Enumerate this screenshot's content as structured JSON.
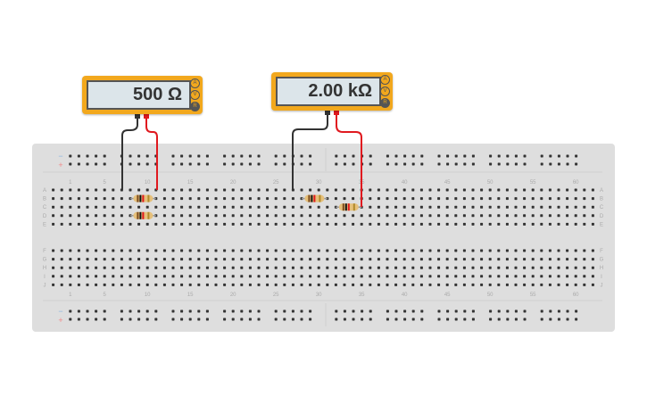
{
  "meters": [
    {
      "reading": "500 Ω",
      "modes": [
        "A",
        "V",
        "R"
      ],
      "selected_mode": "R"
    },
    {
      "reading": "2.00 kΩ",
      "modes": [
        "A",
        "V",
        "R"
      ],
      "selected_mode": "R"
    }
  ],
  "breadboard": {
    "column_labels": [
      "1",
      "5",
      "10",
      "15",
      "20",
      "25",
      "30",
      "35",
      "40",
      "45",
      "50",
      "55",
      "60"
    ],
    "column_numbers": [
      1,
      5,
      10,
      15,
      20,
      25,
      30,
      35,
      40,
      45,
      50,
      55,
      60
    ],
    "rows_top": [
      "A",
      "B",
      "C",
      "D",
      "E"
    ],
    "rows_bottom": [
      "F",
      "G",
      "H",
      "I",
      "J"
    ],
    "rail_minus": "−",
    "rail_plus": "+"
  },
  "colors": {
    "meter": "#f2a81d",
    "display": "#dce5ea",
    "board": "#dedede",
    "wire_black": "#333333",
    "wire_red": "#e0191f"
  },
  "components": [
    {
      "type": "resistor",
      "from": "B8",
      "to": "B11"
    },
    {
      "type": "resistor",
      "from": "D8",
      "to": "D11"
    },
    {
      "type": "resistor",
      "from": "B28",
      "to": "B31"
    },
    {
      "type": "resistor",
      "from": "C32",
      "to": "C35"
    }
  ]
}
